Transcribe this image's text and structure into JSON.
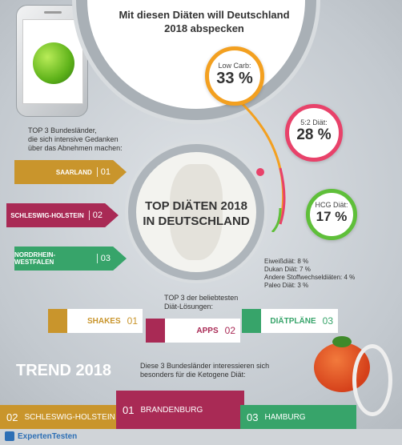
{
  "headline": "Mit diesen Diäten will Deutschland 2018 abspecken",
  "diets": [
    {
      "label": "Low Carb:",
      "value": "33 %"
    },
    {
      "label": "5:2 Diät:",
      "value": "28 %"
    },
    {
      "label": "HCG Diät:",
      "value": "17 %"
    }
  ],
  "center_title": [
    "TOP DIÄTEN 2018",
    "IN DEUTSCHLAND"
  ],
  "other_diets": [
    "Eiweißdiät: 8 %",
    "Dukan Diät: 7 %",
    "Andere Stoffwechseldiäten: 4 %",
    "Paleo Diät: 3 %"
  ],
  "states_intro": [
    "TOP 3 Bundesländer,",
    "die sich intensive Gedanken",
    "über das Abnehmen machen:"
  ],
  "states": [
    {
      "name": "SAARLAND",
      "num": "01",
      "color": "#c9952c"
    },
    {
      "name": "SCHLESWIG-HOLSTEIN",
      "num": "02",
      "color": "#a92a55"
    },
    {
      "name": "NORDRHEIN-WESTFALEN",
      "num": "03",
      "color": "#37a46a"
    }
  ],
  "solutions_intro": [
    "TOP 3 der beliebtesten",
    "Diät-Lösungen:"
  ],
  "solutions": [
    {
      "name": "SHAKES",
      "num": "01",
      "color": "#c9952c"
    },
    {
      "name": "APPS",
      "num": "02",
      "color": "#a92a55"
    },
    {
      "name": "DIÄTPLÄNE",
      "num": "03",
      "color": "#37a46a"
    }
  ],
  "trend_title": "TREND 2018",
  "keto_intro": [
    "Diese 3 Bundesländer interessieren sich",
    "besonders für die Ketogene Diät:"
  ],
  "keto_states": [
    {
      "num": "02",
      "name": "SCHLESWIG-HOLSTEIN"
    },
    {
      "num": "01",
      "name": "BRANDENBURG"
    },
    {
      "num": "03",
      "name": "HAMBURG"
    }
  ],
  "brand": "ExpertenTesten",
  "chart_data": {
    "type": "table",
    "title": "Mit diesen Diäten will Deutschland 2018 abspecken",
    "categories": [
      "Low Carb",
      "5:2 Diät",
      "HCG Diät",
      "Eiweißdiät",
      "Dukan Diät",
      "Andere Stoffwechseldiäten",
      "Paleo Diät"
    ],
    "values": [
      33,
      28,
      17,
      8,
      7,
      4,
      3
    ],
    "unit": "%"
  },
  "colors": {
    "gold": "#c9952c",
    "red": "#a92a55",
    "green": "#37a46a",
    "orange_ring": "#f3a020"
  }
}
